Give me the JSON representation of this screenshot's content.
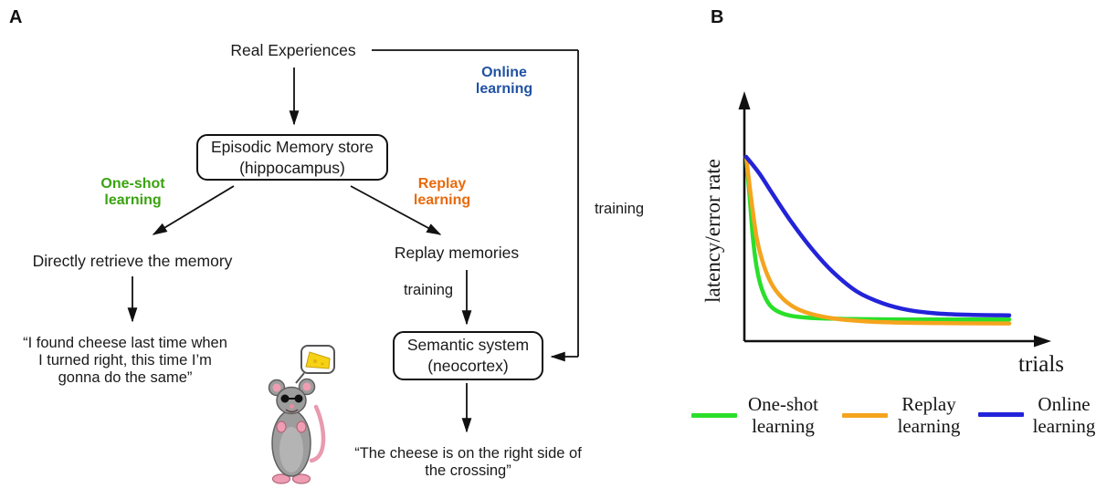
{
  "figure": {
    "panelA": {
      "label": "A",
      "nodes": {
        "real_experiences": "Real Experiences",
        "episodic_box": "Episodic Memory store\n(hippocampus)",
        "one_shot_label": "One-shot\nlearning",
        "replay_label": "Replay\nlearning",
        "online_label": "Online\nlearning",
        "directly_retrieve": "Directly retrieve the memory",
        "quote_one_shot": "“I found cheese last time when\nI turned right, this time I’m\ngonna do the same”",
        "replay_memories": "Replay memories",
        "training_mid": "training",
        "training_right": "training",
        "semantic_box": "Semantic system\n(neocortex)",
        "quote_semantic": "“The cheese is on the right side of\nthe crossing”"
      },
      "colors": {
        "one_shot_green": "#3aa30f",
        "replay_orange": "#e86a0c",
        "online_blue": "#2152a3",
        "line_black": "#111111"
      },
      "illustration": "mouse-with-cheese-thought-bubble"
    },
    "panelB": {
      "label": "B"
    }
  },
  "chart_data": {
    "type": "line",
    "title": "",
    "xlabel": "trials",
    "ylabel": "latency/error rate",
    "x_range": [
      0,
      1
    ],
    "y_range": [
      0,
      1
    ],
    "grid": false,
    "ticks": "none (schematic axes with arrowheads)",
    "legend_position": "below plot, horizontal",
    "series": [
      {
        "name": "One-shot\nlearning",
        "color": "#2adf2a",
        "x": [
          0,
          0.012,
          0.025,
          0.04,
          0.06,
          0.09,
          0.13,
          0.18,
          0.26,
          0.4,
          0.6,
          0.8,
          1.0
        ],
        "y": [
          1.0,
          0.8,
          0.57,
          0.4,
          0.28,
          0.195,
          0.155,
          0.135,
          0.125,
          0.12,
          0.118,
          0.118,
          0.118
        ]
      },
      {
        "name": "Replay\nlearning",
        "color": "#f5a41e",
        "x": [
          0,
          0.02,
          0.04,
          0.065,
          0.095,
          0.13,
          0.17,
          0.22,
          0.29,
          0.38,
          0.5,
          0.65,
          0.8,
          1.0
        ],
        "y": [
          1.0,
          0.76,
          0.56,
          0.42,
          0.315,
          0.245,
          0.195,
          0.16,
          0.133,
          0.115,
          0.104,
          0.099,
          0.097,
          0.096
        ]
      },
      {
        "name": "Online\nlearning",
        "color": "#2323d9",
        "x": [
          0,
          0.05,
          0.1,
          0.17,
          0.25,
          0.33,
          0.42,
          0.52,
          0.62,
          0.73,
          0.85,
          1.0
        ],
        "y": [
          1.0,
          0.91,
          0.8,
          0.65,
          0.5,
          0.375,
          0.27,
          0.205,
          0.168,
          0.15,
          0.143,
          0.14
        ]
      }
    ]
  }
}
